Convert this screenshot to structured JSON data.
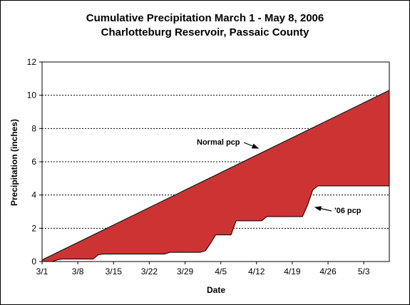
{
  "chart_data": {
    "type": "area",
    "title": "Cumulative Precipitation March 1 - May 8, 2006",
    "subtitle": "Charlotteburg Reservoir, Passaic County",
    "xlabel": "Date",
    "ylabel": "Precipitation (inches)",
    "x_ticks": [
      "3/1",
      "3/8",
      "3/15",
      "3/22",
      "3/29",
      "4/5",
      "4/12",
      "4/19",
      "4/26",
      "5/3"
    ],
    "y_ticks": [
      0,
      2,
      4,
      6,
      8,
      10,
      12
    ],
    "ylim": [
      0,
      12
    ],
    "xlim": [
      "3/1",
      "5/8"
    ],
    "grid": "horizontal dashed",
    "fill_color": "#cc3333",
    "series": [
      {
        "name": "Normal pcp",
        "x": [
          "3/1",
          "5/8"
        ],
        "y": [
          0.1,
          10.3
        ]
      },
      {
        "name": "'06 pcp",
        "x": [
          "3/1",
          "3/2",
          "3/3",
          "3/4",
          "3/5",
          "3/11",
          "3/12",
          "3/13",
          "3/25",
          "3/26",
          "4/1",
          "4/2",
          "4/3",
          "4/4",
          "4/5",
          "4/7",
          "4/8",
          "4/13",
          "4/14",
          "4/21",
          "4/22",
          "4/23",
          "4/24",
          "5/8"
        ],
        "y": [
          0.0,
          0.0,
          0.0,
          0.1,
          0.15,
          0.15,
          0.4,
          0.45,
          0.45,
          0.55,
          0.55,
          0.65,
          1.1,
          1.6,
          1.6,
          1.6,
          2.45,
          2.45,
          2.7,
          2.7,
          3.4,
          4.3,
          4.55,
          4.55
        ]
      }
    ],
    "annotations": [
      {
        "text": "Normal pcp",
        "points_to": "Normal pcp"
      },
      {
        "text": "'06 pcp",
        "points_to": "'06 pcp"
      }
    ]
  }
}
